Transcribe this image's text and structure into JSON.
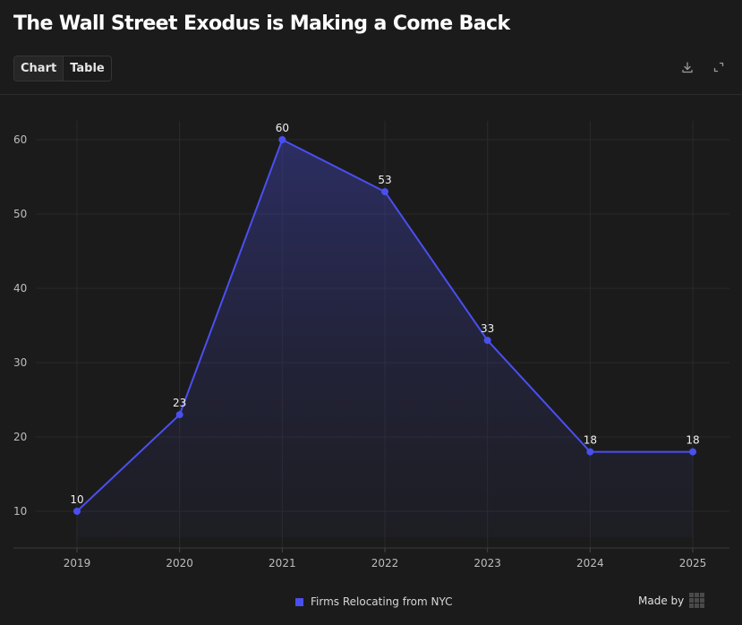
{
  "header": {
    "title": "The Wall Street Exodus is Making a Come Back"
  },
  "tabs": [
    {
      "label": "Chart",
      "active": true
    },
    {
      "label": "Table",
      "active": false
    }
  ],
  "toolbar": {
    "download_icon": "download-icon",
    "expand_icon": "expand-icon"
  },
  "footer": {
    "made_by_label": "Made by"
  },
  "colors": {
    "background": "#1b1b1b",
    "accent": "#4a4ff0",
    "grid": "#2a2a2a"
  },
  "chart_data": {
    "type": "area",
    "title": "The Wall Street Exodus is Making a Come Back",
    "xlabel": "",
    "ylabel": "",
    "categories": [
      "2019",
      "2020",
      "2021",
      "2022",
      "2023",
      "2024",
      "2025"
    ],
    "series": [
      {
        "name": "Firms Relocating from NYC",
        "values": [
          10,
          23,
          60,
          53,
          33,
          18,
          18
        ]
      }
    ],
    "ylim": [
      5,
      65
    ],
    "yticks": [
      10,
      20,
      30,
      40,
      50,
      60
    ],
    "data_labels": true,
    "grid": true,
    "legend": "bottom-center"
  }
}
